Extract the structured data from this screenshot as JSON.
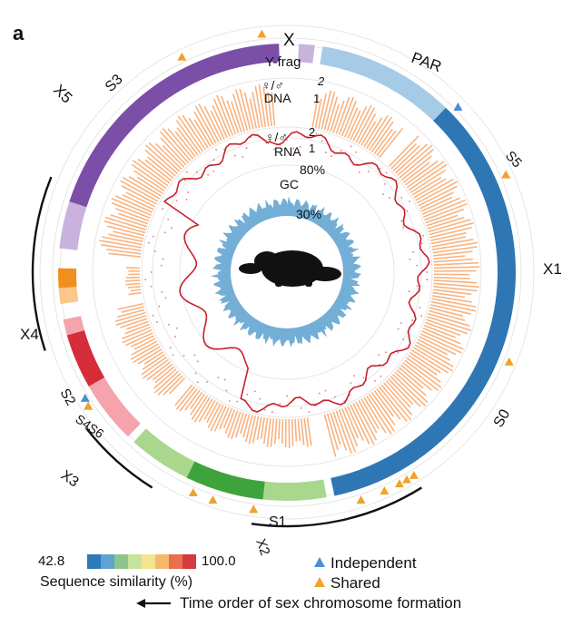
{
  "panel_label": "a",
  "chromosomes": {
    "x": "X",
    "y_frag": "Y-frag",
    "par": "PAR",
    "x1": "X1",
    "x2": "X2",
    "x3": "X3",
    "x4": "X4",
    "x5": "X5"
  },
  "strata": {
    "s0": "S0",
    "s1": "S1",
    "s2": "S2",
    "s3": "S3",
    "s4s6": "S4S6",
    "s5": "S5"
  },
  "tracks": {
    "dna_ratio_symbol": "♀/♂",
    "dna_label": "DNA",
    "dna_tick_high": "2",
    "dna_tick_low": "1",
    "rna_ratio_symbol": "♀/♂",
    "rna_label": "RNA",
    "rna_tick_high": "2",
    "rna_tick_low": "1",
    "gc_label": "GC",
    "gc_tick_high": "80%",
    "gc_tick_low": "30%"
  },
  "legend": {
    "scale_min": "42.8",
    "scale_max": "100.0",
    "scale_title": "Sequence similarity (%)",
    "scale_colors": [
      "#2b7bba",
      "#5fa3d0",
      "#8cc68c",
      "#c7e39b",
      "#f3e58f",
      "#f6b86a",
      "#e8704f",
      "#d43c3c"
    ],
    "independent": "Independent",
    "shared": "Shared",
    "time_order": "Time order of sex chromosome formation"
  },
  "colors": {
    "x1": "#2f77b4",
    "par": "#a6cbe6",
    "x2_light": "#a9d88d",
    "x2_dark": "#3fa33c",
    "x3_light": "#f5a3ad",
    "x3_dark": "#d62d3a",
    "x4_orange": "#f28f1c",
    "x4_light": "#fbc88a",
    "x5": "#7b4fa8",
    "x5_light": "#c9b3dd",
    "dna_fill": "#f7a66a",
    "rna_line": "#c8202a",
    "gc_fill": "#5aa0d0",
    "shared_marker": "#f0a32a",
    "independent_marker": "#4b8fd4"
  }
}
